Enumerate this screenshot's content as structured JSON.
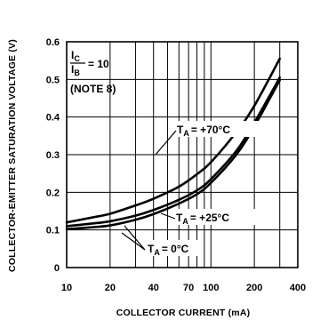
{
  "chart_data": {
    "type": "line",
    "xlabel": "COLLECTOR CURRENT (mA)",
    "ylabel": "COLLECTOR-EMITTER SATURATION VOLTAGE (V)",
    "xscale": "log",
    "xlim": [
      10,
      400
    ],
    "ylim": [
      0,
      0.6
    ],
    "xticks": [
      10,
      20,
      40,
      70,
      100,
      200,
      400
    ],
    "xtick_labels": [
      "10",
      "20",
      "40",
      "70",
      "100",
      "200",
      "400"
    ],
    "extra_x_gridlines": [
      30,
      50,
      60,
      80,
      90,
      300
    ],
    "yticks": [
      0,
      0.1,
      0.2,
      0.3,
      0.4,
      0.5,
      0.6
    ],
    "ytick_labels": [
      "0",
      "0.1",
      "0.2",
      "0.3",
      "0.4",
      "0.5",
      "0.6"
    ],
    "grid": true,
    "condition": {
      "ratio_num": "C",
      "ratio_den": "B",
      "ratio_value": "= 10",
      "note": "(NOTE 8)"
    },
    "series": [
      {
        "name": "TA = +70°C",
        "label_sub": "A",
        "label_value": "= +70°C",
        "x": [
          10,
          15,
          20,
          30,
          40,
          60,
          80,
          100,
          150,
          200,
          300
        ],
        "y": [
          0.12,
          0.133,
          0.143,
          0.165,
          0.183,
          0.215,
          0.248,
          0.28,
          0.36,
          0.43,
          0.555
        ]
      },
      {
        "name": "TA = +25°C",
        "label_sub": "A",
        "label_value": "= +25°C",
        "x": [
          10,
          15,
          20,
          30,
          40,
          60,
          80,
          100,
          150,
          200,
          300
        ],
        "y": [
          0.11,
          0.117,
          0.123,
          0.138,
          0.153,
          0.18,
          0.205,
          0.235,
          0.31,
          0.385,
          0.505
        ]
      },
      {
        "name": "TA = 0°C",
        "label_sub": "A",
        "label_value": "= 0°C",
        "x": [
          10,
          15,
          20,
          30,
          40,
          60,
          80,
          100,
          150,
          200,
          300
        ],
        "y": [
          0.102,
          0.107,
          0.112,
          0.127,
          0.142,
          0.17,
          0.195,
          0.225,
          0.3,
          0.375,
          0.498
        ]
      }
    ]
  }
}
